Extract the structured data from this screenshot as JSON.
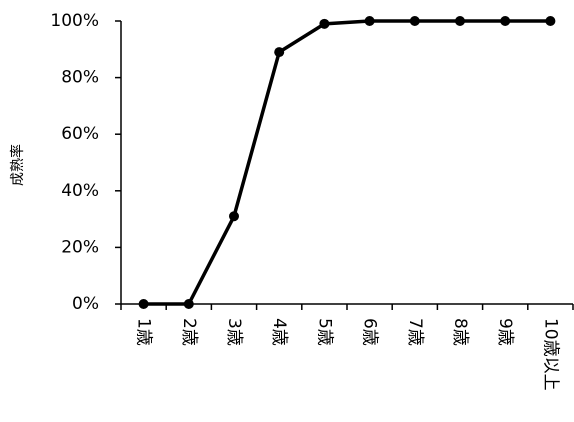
{
  "chart_data": {
    "type": "line",
    "y_label": "成熟率",
    "categories": [
      "1歳",
      "2歳",
      "3歳",
      "4歳",
      "5歳",
      "6歳",
      "7歳",
      "8歳",
      "9歳",
      "10歳以上"
    ],
    "values": [
      0,
      0,
      31,
      89,
      99,
      100,
      100,
      100,
      100,
      100
    ],
    "color": "#000000",
    "ylim": [
      0,
      100
    ],
    "yticks": [
      {
        "value": 0,
        "label": "0%"
      },
      {
        "value": 20,
        "label": "20%"
      },
      {
        "value": 40,
        "label": "40%"
      },
      {
        "value": 60,
        "label": "60%"
      },
      {
        "value": 80,
        "label": "80%"
      },
      {
        "value": 100,
        "label": "100%"
      }
    ],
    "grid": false
  }
}
